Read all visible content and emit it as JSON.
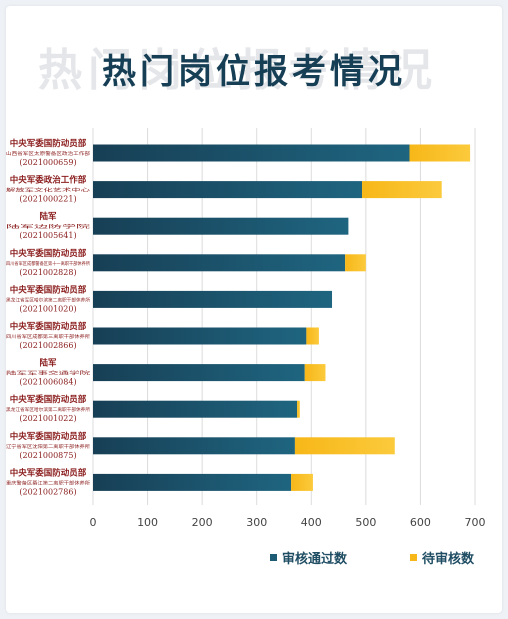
{
  "title": "热门岗位报考情况",
  "colors": {
    "passed": "#1d5a73",
    "passed_dark": "#173f55",
    "pending": "#f7b718",
    "pending_light": "#fbca3c",
    "grid": "#dcdcdc",
    "label": "#8a1c1c",
    "axis_text": "#444444"
  },
  "legend": {
    "passed_label": "审核通过数",
    "pending_label": "待审核数"
  },
  "chart_data": {
    "type": "bar",
    "orientation": "horizontal",
    "stacked": true,
    "title": "热门岗位报考情况",
    "xlim": [
      0,
      700
    ],
    "xticks": [
      0,
      100,
      200,
      300,
      400,
      500,
      600,
      700
    ],
    "grid": true,
    "legend_position": "bottom-right",
    "categories": [
      {
        "org": "中央军委国防动员部",
        "unit": "山西省军区太原警备区政治工作部",
        "code": "(2021000659)"
      },
      {
        "org": "中央军委政治工作部",
        "unit": "解放军文化艺术中心",
        "code": "(2021000221)"
      },
      {
        "org": "陆军",
        "unit": "陆军边防学院",
        "code": "(2021005641)"
      },
      {
        "org": "中央军委国防动员部",
        "unit": "四川省军区成都警备区第十一离职干部休养所",
        "code": "(2021002828)"
      },
      {
        "org": "中央军委国防动员部",
        "unit": "黑龙江省军区哈尔滨第二离职干部休养所",
        "code": "(2021001020)"
      },
      {
        "org": "中央军委国防动员部",
        "unit": "四川省军区成都第三离职干部休养所",
        "code": "(2021002866)"
      },
      {
        "org": "陆军",
        "unit": "陆军军事交通学院",
        "code": "(2021006084)"
      },
      {
        "org": "中央军委国防动员部",
        "unit": "黑龙江省军区哈尔滨第二离职干部休养所",
        "code": "(2021001022)"
      },
      {
        "org": "中央军委国防动员部",
        "unit": "辽宁省军区沈阳第二离职干部休养所",
        "code": "(2021000875)"
      },
      {
        "org": "中央军委国防动员部",
        "unit": "重庆警备区綦江第二离职干部休养所",
        "code": "(2021002786)"
      }
    ],
    "series": [
      {
        "name": "审核通过数",
        "values": [
          580,
          493,
          468,
          462,
          438,
          391,
          388,
          374,
          370,
          363
        ]
      },
      {
        "name": "待审核数",
        "values": [
          111,
          146,
          0,
          38,
          0,
          23,
          38,
          5,
          183,
          40
        ]
      }
    ]
  }
}
